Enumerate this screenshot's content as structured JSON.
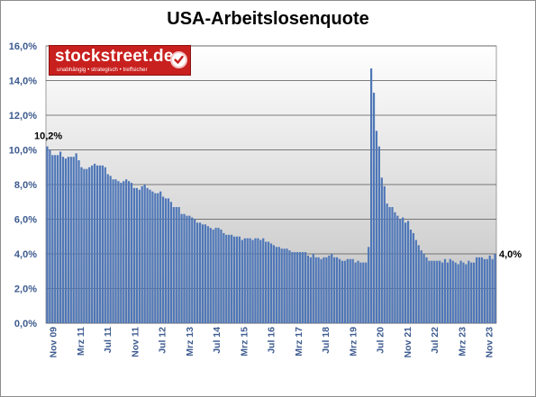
{
  "chart_data": {
    "type": "bar",
    "title": "USA-Arbeitslosenquote",
    "xlabel": "",
    "ylabel": "",
    "ylim": [
      0,
      16
    ],
    "yticks": [
      "0,0%",
      "2,0%",
      "4,0%",
      "6,0%",
      "8,0%",
      "10,0%",
      "12,0%",
      "14,0%",
      "16,0%"
    ],
    "xtick_labels": [
      "Nov 09",
      "Mrz 11",
      "Jul 11",
      "Nov 11",
      "Jul 12",
      "Mrz 13",
      "Jul 14",
      "Mrz 15",
      "Jul 16",
      "Mrz 17",
      "Jul 18",
      "Mrz 19",
      "Jul 20",
      "Nov 21",
      "Jul 22",
      "Mrz 23",
      "Nov 23"
    ],
    "grid": true,
    "legend": "none",
    "bar_color": "#4f77b8",
    "values": [
      10.2,
      10.0,
      9.7,
      9.7,
      9.7,
      9.9,
      9.6,
      9.5,
      9.6,
      9.6,
      9.6,
      9.8,
      9.4,
      9.0,
      8.9,
      8.9,
      9.0,
      9.1,
      9.2,
      9.1,
      9.1,
      9.1,
      9.0,
      8.6,
      8.5,
      8.3,
      8.3,
      8.2,
      8.1,
      8.2,
      8.3,
      8.2,
      8.1,
      7.8,
      7.8,
      7.7,
      7.9,
      8.0,
      7.8,
      7.7,
      7.6,
      7.5,
      7.5,
      7.6,
      7.3,
      7.2,
      7.2,
      7.0,
      6.7,
      6.7,
      6.7,
      6.3,
      6.3,
      6.2,
      6.2,
      6.1,
      6.0,
      5.8,
      5.8,
      5.7,
      5.7,
      5.6,
      5.5,
      5.4,
      5.5,
      5.5,
      5.4,
      5.2,
      5.1,
      5.1,
      5.1,
      5.0,
      5.0,
      5.0,
      4.8,
      4.9,
      4.9,
      4.9,
      4.8,
      4.9,
      4.9,
      4.8,
      4.9,
      4.7,
      4.7,
      4.6,
      4.5,
      4.4,
      4.4,
      4.3,
      4.3,
      4.3,
      4.2,
      4.1,
      4.1,
      4.1,
      4.1,
      4.1,
      4.1,
      3.9,
      3.8,
      4.0,
      3.8,
      3.8,
      3.7,
      3.8,
      3.8,
      3.9,
      4.0,
      3.8,
      3.8,
      3.7,
      3.6,
      3.6,
      3.7,
      3.7,
      3.7,
      3.5,
      3.6,
      3.5,
      3.5,
      3.5,
      4.4,
      14.7,
      13.3,
      11.1,
      10.2,
      8.4,
      7.9,
      6.9,
      6.7,
      6.7,
      6.4,
      6.2,
      6.0,
      6.1,
      5.8,
      5.9,
      5.4,
      5.2,
      4.8,
      4.5,
      4.2,
      4.0,
      3.8,
      3.6,
      3.6,
      3.6,
      3.6,
      3.6,
      3.5,
      3.7,
      3.5,
      3.7,
      3.6,
      3.5,
      3.4,
      3.6,
      3.5,
      3.4,
      3.6,
      3.5,
      3.5,
      3.8,
      3.8,
      3.8,
      3.7,
      3.7,
      3.9,
      3.7,
      4.0
    ],
    "annotations": [
      {
        "label": "10,2%",
        "at": "first"
      },
      {
        "label": "4,0%",
        "at": "last"
      }
    ]
  },
  "logo": {
    "name": "stockstreet.de",
    "tagline": "unabhängig • strategisch • treffsicher",
    "badge": "check-icon"
  }
}
